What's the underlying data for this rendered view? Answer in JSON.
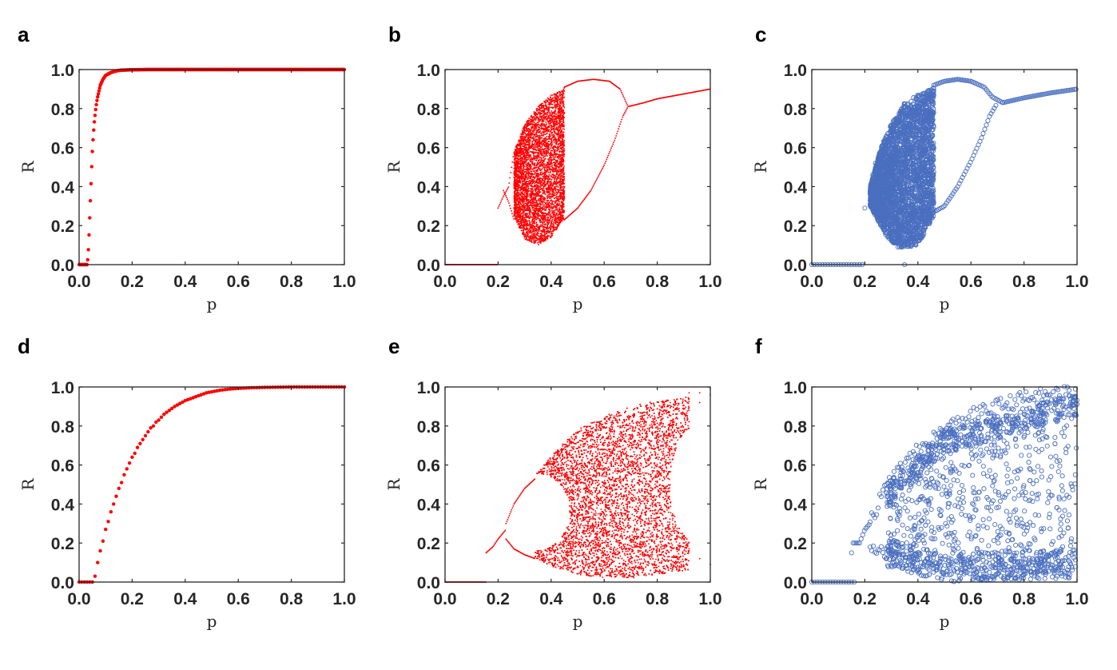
{
  "figure": {
    "panels_letters": [
      "a",
      "b",
      "c",
      "d",
      "e",
      "f"
    ]
  },
  "colors": {
    "red": "#ff0000",
    "blue": "#4a6fbf",
    "axis": "#262626"
  },
  "chart_data": [
    {
      "panel": "a",
      "type": "scatter",
      "marker": "filled-dot",
      "color": "#ff0000",
      "xlabel": "p",
      "ylabel": "R",
      "xlim": [
        0,
        1
      ],
      "ylim": [
        0,
        1
      ],
      "xticks": [
        "0.0",
        "0.2",
        "0.4",
        "0.6",
        "0.8",
        "1.0"
      ],
      "yticks": [
        "0.0",
        "0.2",
        "0.4",
        "0.6",
        "0.8",
        "1.0"
      ],
      "series": [
        {
          "name": "R",
          "x": [
            0.0,
            0.005,
            0.01,
            0.015,
            0.02,
            0.025,
            0.03,
            0.033,
            0.036,
            0.038,
            0.04,
            0.042,
            0.044,
            0.046,
            0.048,
            0.05,
            0.052,
            0.055,
            0.058,
            0.062,
            0.066,
            0.07,
            0.075,
            0.08,
            0.09,
            0.1,
            0.12,
            0.14,
            0.16,
            0.2,
            0.25,
            0.3,
            0.4,
            0.5,
            0.6,
            0.7,
            0.8,
            0.9,
            1.0
          ],
          "y": [
            0,
            0,
            0,
            0,
            0,
            0,
            0,
            0.03,
            0.1,
            0.17,
            0.24,
            0.31,
            0.38,
            0.45,
            0.52,
            0.58,
            0.63,
            0.69,
            0.74,
            0.79,
            0.83,
            0.86,
            0.89,
            0.92,
            0.95,
            0.97,
            0.985,
            0.993,
            0.997,
            0.999,
            1,
            1,
            1,
            1,
            1,
            1,
            1,
            1,
            1
          ]
        }
      ]
    },
    {
      "panel": "b",
      "type": "scatter",
      "marker": "small-dot",
      "color": "#ff0000",
      "xlabel": "p",
      "ylabel": "R",
      "xlim": [
        0,
        1
      ],
      "ylim": [
        0,
        1
      ],
      "xticks": [
        "0.0",
        "0.2",
        "0.4",
        "0.6",
        "0.8",
        "1.0"
      ],
      "yticks": [
        "0.0",
        "0.2",
        "0.4",
        "0.6",
        "0.8",
        "1.0"
      ],
      "regions": [
        {
          "kind": "fixed-zero",
          "x_range": [
            0,
            0.2
          ],
          "y": 0
        },
        {
          "kind": "chaotic-band",
          "x_range": [
            0.26,
            0.45
          ],
          "y_lower": [
            [
              0.26,
              0.25
            ],
            [
              0.3,
              0.13
            ],
            [
              0.35,
              0.1
            ],
            [
              0.4,
              0.14
            ],
            [
              0.43,
              0.2
            ],
            [
              0.45,
              0.24
            ]
          ],
          "y_upper": [
            [
              0.26,
              0.58
            ],
            [
              0.3,
              0.72
            ],
            [
              0.35,
              0.81
            ],
            [
              0.4,
              0.87
            ],
            [
              0.45,
              0.9
            ]
          ]
        },
        {
          "kind": "periodic-branch",
          "points": [
            [
              0.2,
              0.29
            ],
            [
              0.22,
              0.35
            ],
            [
              0.24,
              0.4
            ],
            [
              0.26,
              0.58
            ]
          ]
        },
        {
          "kind": "periodic-branch",
          "points": [
            [
              0.22,
              0.38
            ],
            [
              0.24,
              0.32
            ],
            [
              0.26,
              0.23
            ]
          ]
        },
        {
          "kind": "loop-upper",
          "points": [
            [
              0.45,
              0.91
            ],
            [
              0.5,
              0.94
            ],
            [
              0.56,
              0.95
            ],
            [
              0.62,
              0.94
            ],
            [
              0.66,
              0.9
            ],
            [
              0.68,
              0.84
            ],
            [
              0.69,
              0.81
            ]
          ]
        },
        {
          "kind": "loop-lower",
          "points": [
            [
              0.45,
              0.23
            ],
            [
              0.5,
              0.29
            ],
            [
              0.55,
              0.38
            ],
            [
              0.6,
              0.51
            ],
            [
              0.64,
              0.64
            ],
            [
              0.67,
              0.76
            ],
            [
              0.69,
              0.81
            ]
          ]
        },
        {
          "kind": "loop-left",
          "points": [
            [
              0.42,
              0.18
            ],
            [
              0.44,
              0.24
            ],
            [
              0.45,
              0.4
            ],
            [
              0.44,
              0.6
            ],
            [
              0.43,
              0.8
            ],
            [
              0.45,
              0.91
            ]
          ]
        },
        {
          "kind": "fixed-point",
          "points": [
            [
              0.69,
              0.81
            ],
            [
              0.75,
              0.83
            ],
            [
              0.8,
              0.85
            ],
            [
              0.9,
              0.875
            ],
            [
              1.0,
              0.9
            ]
          ]
        }
      ]
    },
    {
      "panel": "c",
      "type": "scatter",
      "marker": "open-circle",
      "color": "#4a6fbf",
      "xlabel": "p",
      "ylabel": "R",
      "xlim": [
        0,
        1
      ],
      "ylim": [
        0,
        1
      ],
      "xticks": [
        "0.0",
        "0.2",
        "0.4",
        "0.6",
        "0.8",
        "1.0"
      ],
      "yticks": [
        "0.0",
        "0.2",
        "0.4",
        "0.6",
        "0.8",
        "1.0"
      ],
      "regions": [
        {
          "kind": "fixed-zero",
          "x_range": [
            0,
            0.2
          ],
          "y": 0
        },
        {
          "kind": "chaotic-band",
          "x_range": [
            0.22,
            0.46
          ],
          "y_lower": [
            [
              0.22,
              0.3
            ],
            [
              0.28,
              0.15
            ],
            [
              0.33,
              0.08
            ],
            [
              0.4,
              0.1
            ],
            [
              0.44,
              0.2
            ],
            [
              0.46,
              0.25
            ]
          ],
          "y_upper": [
            [
              0.22,
              0.4
            ],
            [
              0.26,
              0.6
            ],
            [
              0.3,
              0.72
            ],
            [
              0.35,
              0.83
            ],
            [
              0.4,
              0.87
            ],
            [
              0.46,
              0.91
            ]
          ]
        },
        {
          "kind": "loop-upper",
          "points": [
            [
              0.46,
              0.92
            ],
            [
              0.5,
              0.94
            ],
            [
              0.55,
              0.95
            ],
            [
              0.6,
              0.94
            ],
            [
              0.65,
              0.91
            ],
            [
              0.68,
              0.86
            ],
            [
              0.72,
              0.83
            ]
          ]
        },
        {
          "kind": "loop-lower",
          "points": [
            [
              0.46,
              0.27
            ],
            [
              0.5,
              0.3
            ],
            [
              0.55,
              0.4
            ],
            [
              0.6,
              0.53
            ],
            [
              0.64,
              0.65
            ],
            [
              0.67,
              0.76
            ],
            [
              0.7,
              0.83
            ]
          ]
        },
        {
          "kind": "fixed-point",
          "points": [
            [
              0.72,
              0.83
            ],
            [
              0.8,
              0.855
            ],
            [
              0.9,
              0.88
            ],
            [
              1.0,
              0.9
            ]
          ]
        },
        {
          "kind": "isolated",
          "points": [
            [
              0.35,
              0.0
            ],
            [
              0.2,
              0.29
            ],
            [
              0.22,
              0.37
            ],
            [
              0.23,
              0.46
            ],
            [
              0.24,
              0.52
            ]
          ]
        }
      ]
    },
    {
      "panel": "d",
      "type": "scatter",
      "marker": "filled-dot",
      "color": "#ff0000",
      "xlabel": "p",
      "ylabel": "R",
      "xlim": [
        0,
        1
      ],
      "ylim": [
        0,
        1
      ],
      "xticks": [
        "0.0",
        "0.2",
        "0.4",
        "0.6",
        "0.8",
        "1.0"
      ],
      "yticks": [
        "0.0",
        "0.2",
        "0.4",
        "0.6",
        "0.8",
        "1.0"
      ],
      "series": [
        {
          "name": "R",
          "x": [
            0.0,
            0.01,
            0.02,
            0.03,
            0.04,
            0.05,
            0.06,
            0.07,
            0.08,
            0.09,
            0.1,
            0.11,
            0.12,
            0.13,
            0.14,
            0.15,
            0.16,
            0.17,
            0.18,
            0.19,
            0.2,
            0.21,
            0.22,
            0.23,
            0.24,
            0.25,
            0.26,
            0.27,
            0.28,
            0.29,
            0.3,
            0.32,
            0.34,
            0.36,
            0.38,
            0.4,
            0.42,
            0.44,
            0.46,
            0.48,
            0.5,
            0.53,
            0.56,
            0.6,
            0.65,
            0.7,
            0.8,
            0.9,
            1.0
          ],
          "y": [
            0,
            0,
            0,
            0,
            0,
            0,
            0.03,
            0.1,
            0.16,
            0.21,
            0.27,
            0.31,
            0.36,
            0.4,
            0.44,
            0.48,
            0.51,
            0.55,
            0.58,
            0.61,
            0.64,
            0.66,
            0.69,
            0.71,
            0.73,
            0.75,
            0.77,
            0.79,
            0.8,
            0.82,
            0.83,
            0.86,
            0.88,
            0.9,
            0.915,
            0.93,
            0.94,
            0.95,
            0.96,
            0.97,
            0.975,
            0.983,
            0.988,
            0.993,
            0.996,
            0.998,
            1,
            1,
            1
          ]
        }
      ]
    },
    {
      "panel": "e",
      "type": "scatter",
      "marker": "small-dot",
      "color": "#ff0000",
      "xlabel": "p",
      "ylabel": "R",
      "xlim": [
        0,
        1
      ],
      "ylim": [
        0,
        1
      ],
      "xticks": [
        "0.0",
        "0.2",
        "0.4",
        "0.6",
        "0.8",
        "1.0"
      ],
      "yticks": [
        "0.0",
        "0.2",
        "0.4",
        "0.6",
        "0.8",
        "1.0"
      ],
      "regions": [
        {
          "kind": "fixed-zero",
          "x_range": [
            0,
            0.155
          ],
          "y": 0
        },
        {
          "kind": "branch",
          "points": [
            [
              0.155,
              0.15
            ],
            [
              0.18,
              0.18
            ],
            [
              0.2,
              0.22
            ],
            [
              0.23,
              0.27
            ]
          ]
        },
        {
          "kind": "branch-upper",
          "points": [
            [
              0.23,
              0.3
            ],
            [
              0.26,
              0.4
            ],
            [
              0.3,
              0.48
            ],
            [
              0.34,
              0.53
            ]
          ]
        },
        {
          "kind": "branch-lower",
          "points": [
            [
              0.23,
              0.22
            ],
            [
              0.26,
              0.17
            ],
            [
              0.3,
              0.14
            ],
            [
              0.34,
              0.12
            ]
          ]
        },
        {
          "kind": "chaotic-band",
          "x_range": [
            0.34,
            0.92
          ],
          "y_lower": [
            [
              0.34,
              0.12
            ],
            [
              0.4,
              0.08
            ],
            [
              0.5,
              0.04
            ],
            [
              0.6,
              0.02
            ],
            [
              0.7,
              0.02
            ],
            [
              0.8,
              0.04
            ],
            [
              0.92,
              0.06
            ]
          ],
          "y_upper": [
            [
              0.34,
              0.55
            ],
            [
              0.4,
              0.65
            ],
            [
              0.5,
              0.78
            ],
            [
              0.6,
              0.85
            ],
            [
              0.7,
              0.9
            ],
            [
              0.8,
              0.93
            ],
            [
              0.92,
              0.95
            ]
          ],
          "waist": [
            [
              0.47,
              0.42
            ],
            [
              0.47,
              0.42
            ],
            [
              0.87,
              0.3
            ]
          ]
        },
        {
          "kind": "periodic-window",
          "points": [
            [
              0.92,
              0.97
            ],
            [
              0.96,
              0.97
            ],
            [
              1.0,
              0.96
            ],
            [
              0.92,
              0.88
            ],
            [
              0.96,
              0.92
            ],
            [
              1.0,
              0.09
            ],
            [
              0.92,
              0.17
            ],
            [
              0.96,
              0.12
            ]
          ]
        }
      ]
    },
    {
      "panel": "f",
      "type": "scatter",
      "marker": "open-circle",
      "color": "#4a6fbf",
      "xlabel": "p",
      "ylabel": "R",
      "xlim": [
        0,
        1
      ],
      "ylim": [
        0,
        1
      ],
      "xticks": [
        "0.0",
        "0.2",
        "0.4",
        "0.6",
        "0.8",
        "1.0"
      ],
      "yticks": [
        "0.0",
        "0.2",
        "0.4",
        "0.6",
        "0.8",
        "1.0"
      ],
      "regions": [
        {
          "kind": "fixed-zero",
          "x_range": [
            0,
            0.16
          ],
          "y": 0
        },
        {
          "kind": "branch",
          "points": [
            [
              0.15,
              0.15
            ],
            [
              0.15,
              0.2
            ],
            [
              0.18,
              0.2
            ],
            [
              0.2,
              0.27
            ],
            [
              0.22,
              0.3
            ]
          ]
        },
        {
          "kind": "upper-envelope",
          "points": [
            [
              0.22,
              0.32
            ],
            [
              0.3,
              0.53
            ],
            [
              0.4,
              0.67
            ],
            [
              0.5,
              0.78
            ],
            [
              0.6,
              0.85
            ],
            [
              0.7,
              0.9
            ],
            [
              0.8,
              0.94
            ],
            [
              0.9,
              0.96
            ],
            [
              1.0,
              0.97
            ]
          ]
        },
        {
          "kind": "lower-band",
          "points": [
            [
              0.22,
              0.2
            ],
            [
              0.3,
              0.13
            ],
            [
              0.4,
              0.1
            ],
            [
              0.5,
              0.08
            ],
            [
              0.6,
              0.06
            ],
            [
              0.7,
              0.06
            ],
            [
              0.8,
              0.08
            ],
            [
              0.9,
              0.1
            ],
            [
              1.0,
              0.1
            ]
          ]
        },
        {
          "kind": "chaotic-band",
          "x_range": [
            0.28,
            1.0
          ],
          "y_lower": [
            [
              0.28,
              0.08
            ],
            [
              0.5,
              0.0
            ],
            [
              1.0,
              0.02
            ]
          ],
          "y_upper": [
            [
              0.28,
              0.5
            ],
            [
              0.5,
              0.78
            ],
            [
              1.0,
              0.97
            ]
          ]
        }
      ]
    }
  ]
}
